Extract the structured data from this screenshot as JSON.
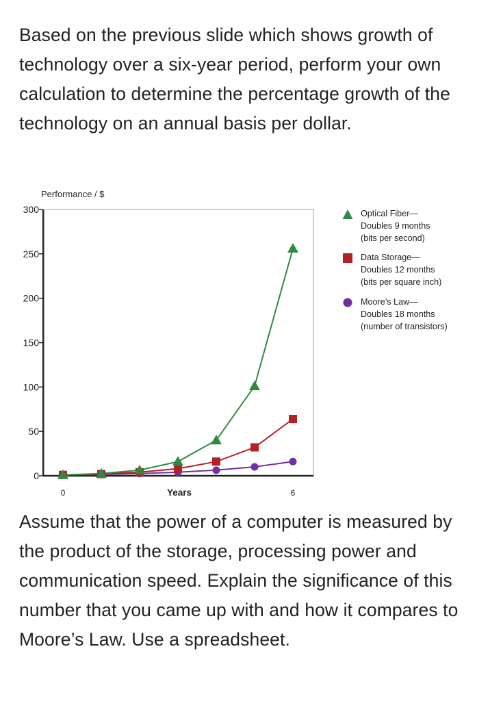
{
  "question": {
    "intro": "Based on the previous slide which shows growth of technology over a six-year period, perform your own calculation to determine the percentage growth of the technology on an annual basis per dollar.",
    "outro": "Assume that the power of a computer is measured by the product of the storage, processing power and communication speed. Explain the significance of this number that you came up with and how it compares to Moore’s Law. Use a spreadsheet."
  },
  "chart_data": {
    "type": "line",
    "ylabel": "Performance / $",
    "xlabel": "Years",
    "xlim": [
      0,
      6
    ],
    "ylim": [
      0,
      300
    ],
    "x_ticks": [
      "0",
      "6"
    ],
    "y_ticks": [
      0,
      50,
      100,
      150,
      200,
      250,
      300
    ],
    "grid": false,
    "legend_position": "right",
    "series": [
      {
        "key": "fiber",
        "name": "Optical Fiber—",
        "legend_lines": [
          "Optical Fiber—",
          "Doubles 9 months",
          "(bits per second)"
        ],
        "marker": "triangle",
        "color": "#2e8a43",
        "x": [
          0,
          1,
          2,
          3,
          4,
          5,
          6
        ],
        "values": [
          1,
          2.5,
          6.3,
          16,
          40,
          101,
          256
        ]
      },
      {
        "key": "storage",
        "name": "Data Storage—",
        "legend_lines": [
          "Data Storage—",
          "Doubles 12 months",
          "(bits per square inch)"
        ],
        "marker": "square",
        "color": "#b52025",
        "x": [
          0,
          1,
          2,
          3,
          4,
          5,
          6
        ],
        "values": [
          1,
          2,
          4,
          8,
          16,
          32,
          64
        ]
      },
      {
        "key": "moore",
        "name": "Moore’s Law—",
        "legend_lines": [
          "Moore’s Law—",
          "Doubles 18 months",
          "(number of transistors)"
        ],
        "marker": "circle",
        "color": "#7030a0",
        "x": [
          0,
          1,
          2,
          3,
          4,
          5,
          6
        ],
        "values": [
          1,
          1.6,
          2.5,
          4,
          6.3,
          10,
          16
        ]
      }
    ]
  }
}
